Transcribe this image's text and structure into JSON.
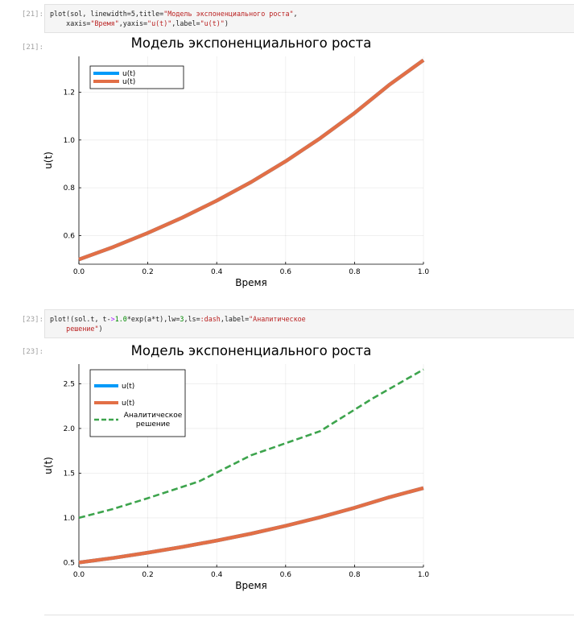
{
  "cells": [
    {
      "in_prompt": "[21]:",
      "out_prompt": "[21]:",
      "code_line1": [
        "plot(sol, linewidth=5,title=",
        "\"Модель экспоненциального роста\"",
        ","
      ],
      "code_line2": [
        "xaxis=",
        "\"Время\"",
        ",yaxis=",
        "\"u(t)\"",
        ",label=",
        "\"u(t)\"",
        ")"
      ]
    },
    {
      "in_prompt": "[23]:",
      "out_prompt": "[23]:",
      "code_line1": [
        "plot!(sol.t, t-",
        ">",
        "1.0",
        "*exp(a*t),lw=",
        "3",
        ",ls=",
        ":dash",
        ",label=",
        "\"Аналитическое"
      ],
      "code_line2": [
        "решение\"",
        ")"
      ]
    }
  ],
  "colors": {
    "numeric_blue": "#009af9",
    "numeric_orange": "#e26f46",
    "analytic_green": "#3da44d"
  },
  "chart_data": [
    {
      "type": "line",
      "title": "Модель экспоненциального роста",
      "xlabel": "Время",
      "ylabel": "u(t)",
      "xlim": [
        0,
        1
      ],
      "ylim": [
        0.48,
        1.35
      ],
      "xticks": [
        "0.0",
        "0.2",
        "0.4",
        "0.6",
        "0.8",
        "1.0"
      ],
      "yticks": [
        "0.6",
        "0.8",
        "1.0",
        "1.2"
      ],
      "ytick_values": [
        0.6,
        0.8,
        1.0,
        1.2
      ],
      "legend_position": "top-left",
      "series": [
        {
          "name": "u(t)",
          "color": "#009af9",
          "style": "solid",
          "x": [
            0.0,
            0.1,
            0.2,
            0.3,
            0.4,
            0.5,
            0.6,
            0.7,
            0.8,
            0.9,
            1.0
          ],
          "y": [
            0.5,
            0.552,
            0.611,
            0.675,
            0.746,
            0.824,
            0.911,
            1.007,
            1.113,
            1.23,
            1.334
          ]
        },
        {
          "name": "u(t)",
          "color": "#e26f46",
          "style": "solid",
          "x": [
            0.0,
            0.1,
            0.2,
            0.3,
            0.4,
            0.5,
            0.6,
            0.7,
            0.8,
            0.9,
            1.0
          ],
          "y": [
            0.5,
            0.552,
            0.611,
            0.675,
            0.746,
            0.824,
            0.911,
            1.007,
            1.113,
            1.23,
            1.334
          ]
        }
      ]
    },
    {
      "type": "line",
      "title": "Модель экспоненциального роста",
      "xlabel": "Время",
      "ylabel": "u(t)",
      "xlim": [
        0,
        1
      ],
      "ylim": [
        0.45,
        2.72
      ],
      "xticks": [
        "0.0",
        "0.2",
        "0.4",
        "0.6",
        "0.8",
        "1.0"
      ],
      "yticks": [
        "0.5",
        "1.0",
        "1.5",
        "2.0",
        "2.5"
      ],
      "ytick_values": [
        0.5,
        1.0,
        1.5,
        2.0,
        2.5
      ],
      "legend_position": "top-left",
      "series": [
        {
          "name": "u(t)",
          "color": "#009af9",
          "style": "solid",
          "x": [
            0.0,
            0.1,
            0.2,
            0.3,
            0.4,
            0.5,
            0.6,
            0.7,
            0.8,
            0.9,
            1.0
          ],
          "y": [
            0.5,
            0.552,
            0.611,
            0.675,
            0.746,
            0.824,
            0.911,
            1.007,
            1.113,
            1.23,
            1.334
          ]
        },
        {
          "name": "u(t)",
          "color": "#e26f46",
          "style": "solid",
          "x": [
            0.0,
            0.1,
            0.2,
            0.3,
            0.4,
            0.5,
            0.6,
            0.7,
            0.8,
            0.9,
            1.0
          ],
          "y": [
            0.5,
            0.552,
            0.611,
            0.675,
            0.746,
            0.824,
            0.911,
            1.007,
            1.113,
            1.23,
            1.334
          ]
        },
        {
          "name": "Аналитическое решение",
          "name_lines": [
            "Аналитическое",
            "решение"
          ],
          "color": "#3da44d",
          "style": "dash",
          "x": [
            0.0,
            0.1,
            0.2,
            0.35,
            0.5,
            0.7,
            0.85,
            1.0
          ],
          "y": [
            1.0,
            1.1,
            1.22,
            1.41,
            1.7,
            1.97,
            2.33,
            2.66
          ]
        }
      ]
    }
  ]
}
